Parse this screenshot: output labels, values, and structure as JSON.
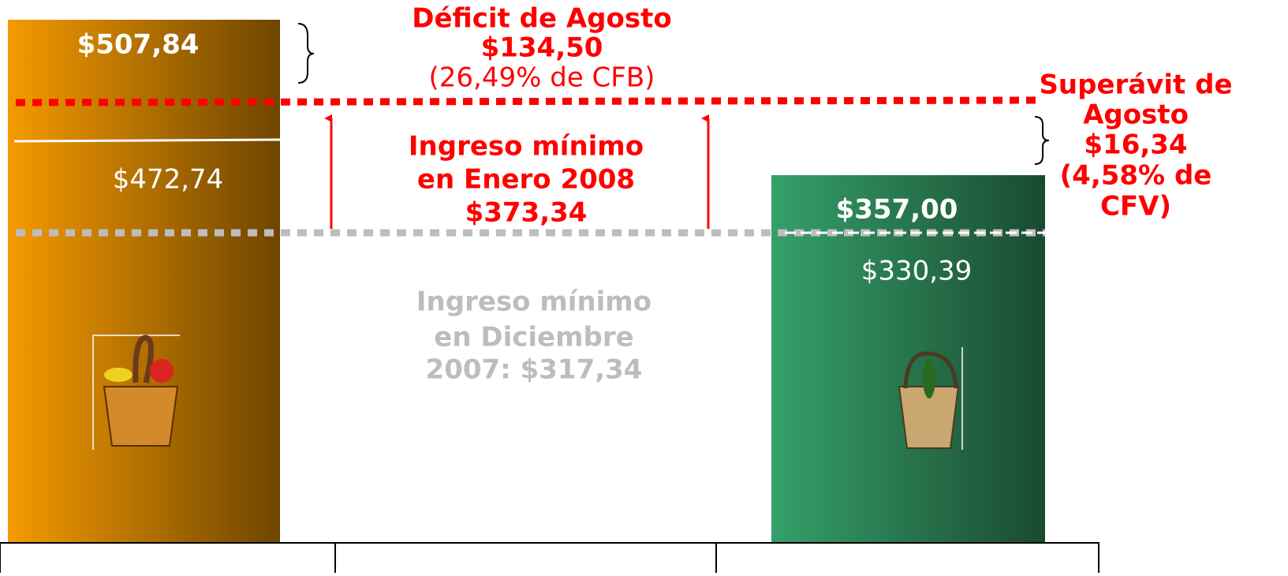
{
  "left_bar": {
    "top_label": "$507,84",
    "mid_label": "$472,74"
  },
  "right_bar": {
    "top_label": "$357,00",
    "mid_label": "$330,39"
  },
  "deficit": {
    "lines": [
      "Déficit de Agosto",
      "$134,50",
      "(26,49% de CFB)"
    ]
  },
  "new_minimum": {
    "lines": [
      "Ingreso mínimo",
      "en Enero 2008",
      "$373,34"
    ]
  },
  "old_minimum": {
    "lines": [
      "Ingreso mínimo",
      "en Diciembre",
      "2007: $317,34"
    ]
  },
  "surplus": {
    "lines": [
      "Superávit de",
      "Agosto",
      "$16,34",
      "(4,58% de",
      "CFV)"
    ]
  }
}
